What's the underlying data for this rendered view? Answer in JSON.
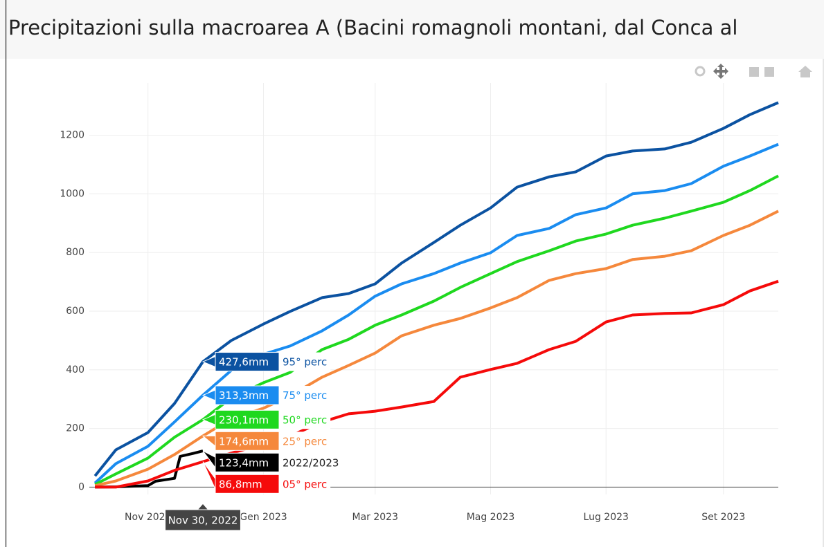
{
  "chart_data": {
    "type": "line",
    "title": "Precipitazioni sulla macroarea A (Bacini romagnoli montani, dal Conca al",
    "x": [
      "2022-10-04",
      "2022-10-15",
      "2022-11-01",
      "2022-11-15",
      "2022-11-30",
      "2022-12-15",
      "2023-01-01",
      "2023-01-15",
      "2023-02-01",
      "2023-02-15",
      "2023-03-01",
      "2023-03-15",
      "2023-04-01",
      "2023-04-15",
      "2023-05-01",
      "2023-05-15",
      "2023-06-01",
      "2023-06-15",
      "2023-07-01",
      "2023-07-15",
      "2023-08-01",
      "2023-08-15",
      "2023-09-01",
      "2023-09-15",
      "2023-09-30"
    ],
    "series": [
      {
        "name": "95° perc",
        "color": "#0b52a1",
        "values": [
          38,
          127,
          186,
          285,
          427.6,
          500,
          556,
          599,
          646,
          660,
          693,
          764,
          834,
          893,
          952,
          1023,
          1058,
          1075,
          1129,
          1146,
          1153,
          1176,
          1223,
          1270,
          1311
        ],
        "value_labels": [
          null,
          null,
          null,
          null,
          "427,6mm",
          null,
          null,
          null,
          null,
          null,
          null,
          null,
          null,
          null,
          null,
          null,
          null,
          null,
          null,
          null,
          null,
          null,
          null,
          null,
          null
        ]
      },
      {
        "name": "75° perc",
        "color": "#1a8cf0",
        "values": [
          14,
          80,
          139,
          222,
          313.3,
          398,
          453,
          481,
          533,
          587,
          651,
          693,
          728,
          764,
          799,
          858,
          882,
          929,
          952,
          1000,
          1011,
          1035,
          1094,
          1129,
          1169
        ],
        "value_labels": [
          null,
          null,
          null,
          null,
          "313,3mm",
          null,
          null,
          null,
          null,
          null,
          null,
          null,
          null,
          null,
          null,
          null,
          null,
          null,
          null,
          null,
          null,
          null,
          null,
          null,
          null
        ]
      },
      {
        "name": "50° perc",
        "color": "#1fd81f",
        "values": [
          9,
          45,
          99,
          170,
          230.1,
          304,
          356,
          391,
          469,
          504,
          552,
          587,
          634,
          681,
          728,
          769,
          806,
          839,
          863,
          893,
          917,
          941,
          971,
          1011,
          1061
        ],
        "value_labels": [
          null,
          null,
          null,
          null,
          "230,1mm",
          null,
          null,
          null,
          null,
          null,
          null,
          null,
          null,
          null,
          null,
          null,
          null,
          null,
          null,
          null,
          null,
          null,
          null,
          null,
          null
        ]
      },
      {
        "name": "25° perc",
        "color": "#f5883c",
        "values": [
          5,
          21,
          61,
          111,
          174.6,
          233,
          269,
          311,
          375,
          415,
          457,
          516,
          552,
          575,
          611,
          646,
          705,
          728,
          745,
          776,
          787,
          806,
          858,
          893,
          941
        ],
        "value_labels": [
          null,
          null,
          null,
          null,
          "174,6mm",
          null,
          null,
          null,
          null,
          null,
          null,
          null,
          null,
          null,
          null,
          null,
          null,
          null,
          null,
          null,
          null,
          null,
          null,
          null,
          null
        ]
      },
      {
        "name": "2022/2023",
        "color": "#000000",
        "x": [
          "2022-10-04",
          "2022-10-15",
          "2022-11-01",
          "2022-11-05",
          "2022-11-15",
          "2022-11-18",
          "2022-11-25",
          "2022-11-30"
        ],
        "values": [
          0,
          1,
          5,
          20,
          30,
          105,
          115,
          123.4
        ],
        "value_labels": [
          null,
          null,
          null,
          null,
          null,
          null,
          null,
          "123,4mm"
        ]
      },
      {
        "name": "05° perc",
        "color": "#f50a0a",
        "values": [
          0,
          0,
          21,
          57,
          86.8,
          116,
          146,
          174,
          222,
          250,
          259,
          273,
          292,
          375,
          401,
          422,
          469,
          497,
          563,
          587,
          592,
          594,
          622,
          669,
          702
        ],
        "value_labels": [
          null,
          null,
          null,
          null,
          "86,8mm",
          null,
          null,
          null,
          null,
          null,
          null,
          null,
          null,
          null,
          null,
          null,
          null,
          null,
          null,
          null,
          null,
          null,
          null,
          null,
          null
        ]
      }
    ],
    "xlim": [
      "2022-10-01",
      "2023-09-30"
    ],
    "xticks": [
      {
        "value": "2022-11-01",
        "label": "Nov 2022"
      },
      {
        "value": "2023-01-01",
        "label": "Gen 2023"
      },
      {
        "value": "2023-03-01",
        "label": "Mar 2023"
      },
      {
        "value": "2023-05-01",
        "label": "Mag 2023"
      },
      {
        "value": "2023-07-01",
        "label": "Lug 2023"
      },
      {
        "value": "2023-09-01",
        "label": "Set 2023"
      }
    ],
    "ylim": [
      -25,
      1378
    ],
    "yticks": [
      0,
      200,
      400,
      600,
      800,
      1000,
      1200
    ],
    "grid": true,
    "hover_x": "2022-11-30",
    "hover_x_label": "Nov 30, 2022"
  }
}
